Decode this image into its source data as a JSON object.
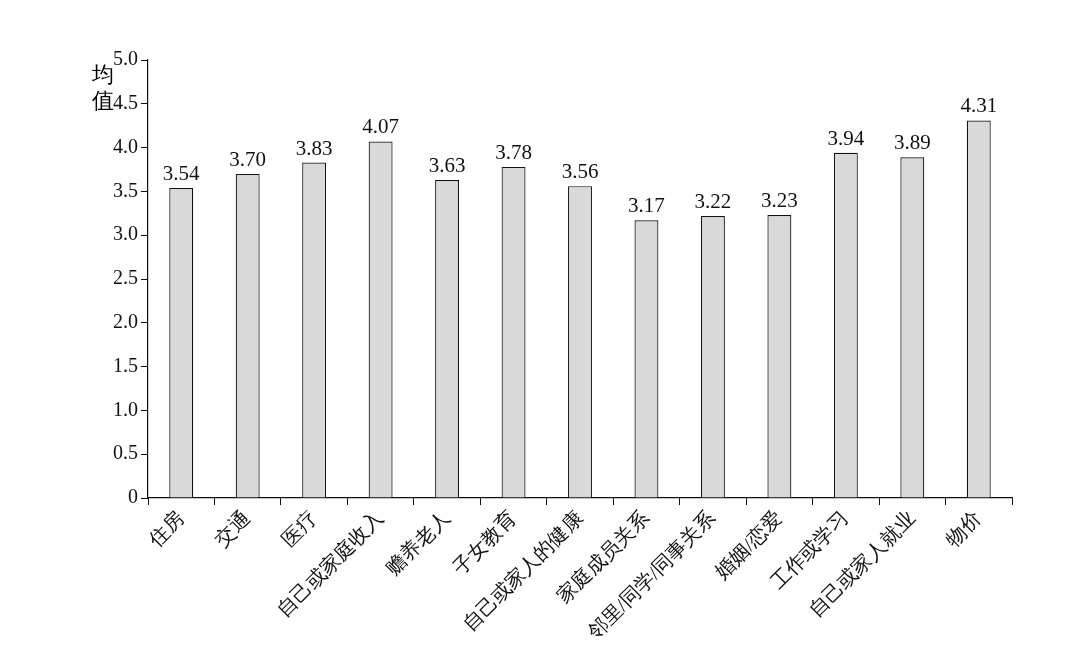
{
  "chart_data": {
    "type": "bar",
    "ylabel": "均值",
    "categories": [
      "住房",
      "交通",
      "医疗",
      "自己或家庭收入",
      "赡养老人",
      "子女教育",
      "自己或家人的健康",
      "家庭成员关系",
      "邻里/同学/同事关系",
      "婚姻/恋爱",
      "工作或学习",
      "自己或家人就业",
      "物价"
    ],
    "values": [
      3.54,
      3.7,
      3.83,
      4.07,
      3.63,
      3.78,
      3.56,
      3.17,
      3.22,
      3.23,
      3.94,
      3.89,
      4.31
    ],
    "value_labels": [
      "3.54",
      "3.70",
      "3.83",
      "4.07",
      "3.63",
      "3.78",
      "3.56",
      "3.17",
      "3.22",
      "3.23",
      "3.94",
      "3.89",
      "4.31"
    ],
    "color": "#d9d9d9",
    "ylim": [
      0,
      5
    ],
    "yticks": [
      0,
      {
        "value": 0.5,
        "label": "0.5"
      },
      {
        "value": 1,
        "label": "1.0"
      },
      {
        "value": 1.5,
        "label": "1.5"
      },
      {
        "value": 2,
        "label": "2.0"
      },
      {
        "value": 2.5,
        "label": "2.5"
      },
      {
        "value": 3,
        "label": "3.0"
      },
      {
        "value": 3.5,
        "label": "3.5"
      },
      {
        "value": 4,
        "label": "4.0"
      },
      {
        "value": 4.5,
        "label": "4.5"
      },
      {
        "value": 5,
        "label": "5.0"
      }
    ],
    "grid": false,
    "legend": false
  }
}
